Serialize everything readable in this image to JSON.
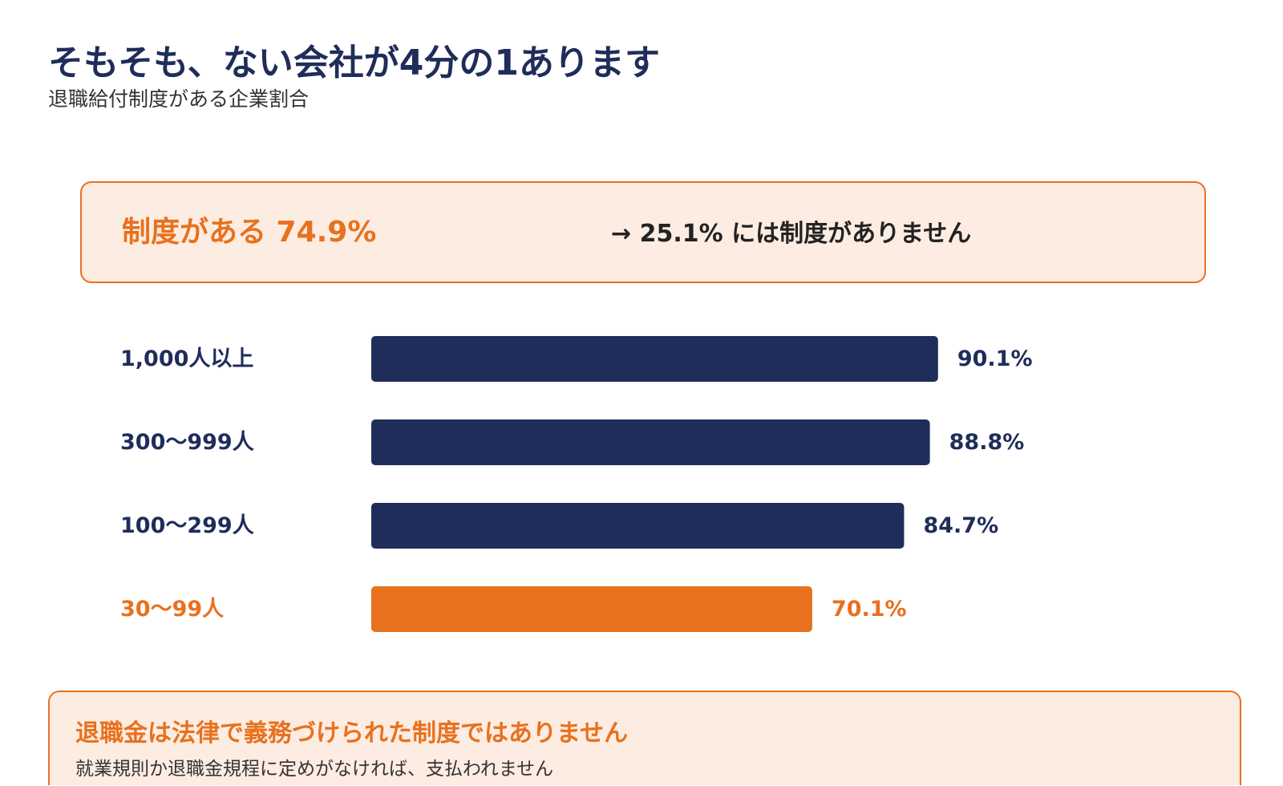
{
  "header": {
    "title": "そもそも、ない会社が4分の1あります",
    "subtitle": "退職給付制度がある企業割合"
  },
  "summary": {
    "main": "制度がある 74.9%",
    "note": "→ 25.1% には制度がありません"
  },
  "colors": {
    "navy": "#1f2d5a",
    "orange": "#e8711e",
    "highlight_bg": "#fdece2"
  },
  "chart_data": {
    "type": "bar",
    "orientation": "horizontal",
    "title": "",
    "xlabel": "",
    "ylabel": "",
    "xlim": [
      0,
      100
    ],
    "grid": false,
    "legend": "none",
    "categories": [
      "1,000人以上",
      "300〜999人",
      "100〜299人",
      "30〜99人"
    ],
    "values": [
      90.1,
      88.8,
      84.7,
      70.1
    ],
    "value_labels": [
      "90.1%",
      "88.8%",
      "84.7%",
      "70.1%"
    ],
    "highlight": [
      false,
      false,
      false,
      true
    ]
  },
  "footer": {
    "title": "退職金は法律で義務づけられた制度ではありません",
    "text": "就業規則か退職金規程に定めがなければ、支払われません"
  }
}
